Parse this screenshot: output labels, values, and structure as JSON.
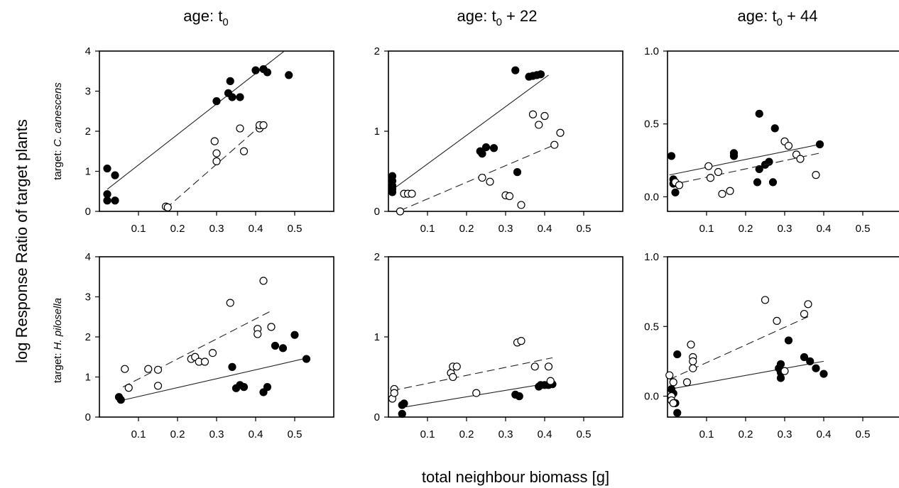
{
  "figure": {
    "ylabel": "log Response Ratio of target plants",
    "xlabel": "total neighbour biomass [g]",
    "columns": [
      {
        "prefix": "age: t",
        "sub": "0",
        "suffix": ""
      },
      {
        "prefix": "age: t",
        "sub": "0",
        "suffix": " + 22"
      },
      {
        "prefix": "age: t",
        "sub": "0",
        "suffix": " + 44"
      }
    ],
    "rows": [
      {
        "prefix": "target: ",
        "species": "C. canescens"
      },
      {
        "prefix": "target: ",
        "species": "H. pilosella"
      }
    ]
  },
  "chart_data": [
    {
      "type": "scatter",
      "row": 0,
      "col": 0,
      "xlim": [
        0,
        0.6
      ],
      "ylim": [
        0,
        4
      ],
      "xticks": [
        "0.1",
        "0.2",
        "0.3",
        "0.4",
        "0.5"
      ],
      "yticks": [
        "0",
        "1",
        "2",
        "3",
        "4"
      ],
      "series": [
        {
          "marker": "filled",
          "line": "solid",
          "points": [
            [
              0.02,
              1.07
            ],
            [
              0.04,
              0.9
            ],
            [
              0.02,
              0.43
            ],
            [
              0.02,
              0.27
            ],
            [
              0.04,
              0.27
            ],
            [
              0.3,
              2.75
            ],
            [
              0.33,
              2.95
            ],
            [
              0.335,
              3.25
            ],
            [
              0.34,
              2.85
            ],
            [
              0.36,
              2.85
            ],
            [
              0.4,
              3.52
            ],
            [
              0.42,
              3.55
            ],
            [
              0.43,
              3.47
            ],
            [
              0.485,
              3.4
            ]
          ],
          "fit": [
            [
              0.02,
              0.55
            ],
            [
              0.48,
              4.05
            ]
          ]
        },
        {
          "marker": "open",
          "line": "dashed",
          "points": [
            [
              0.17,
              0.12
            ],
            [
              0.175,
              0.1
            ],
            [
              0.295,
              1.75
            ],
            [
              0.3,
              1.45
            ],
            [
              0.3,
              1.25
            ],
            [
              0.36,
              2.07
            ],
            [
              0.37,
              1.5
            ],
            [
              0.41,
              2.07
            ],
            [
              0.41,
              2.15
            ],
            [
              0.42,
              2.15
            ]
          ],
          "fit": [
            [
              0.17,
              0.07
            ],
            [
              0.42,
              2.2
            ]
          ]
        }
      ]
    },
    {
      "type": "scatter",
      "row": 0,
      "col": 1,
      "xlim": [
        0,
        0.6
      ],
      "ylim": [
        0,
        2
      ],
      "xticks": [
        "0.1",
        "0.2",
        "0.3",
        "0.4",
        "0.5"
      ],
      "yticks": [
        "0",
        "1",
        "2"
      ],
      "series": [
        {
          "marker": "filled",
          "line": "solid",
          "points": [
            [
              0.01,
              0.44
            ],
            [
              0.01,
              0.38
            ],
            [
              0.01,
              0.32
            ],
            [
              0.01,
              0.28
            ],
            [
              0.01,
              0.24
            ],
            [
              0.235,
              0.75
            ],
            [
              0.24,
              0.72
            ],
            [
              0.25,
              0.8
            ],
            [
              0.27,
              0.79
            ],
            [
              0.325,
              1.76
            ],
            [
              0.33,
              0.49
            ],
            [
              0.36,
              1.68
            ],
            [
              0.37,
              1.69
            ],
            [
              0.38,
              1.7
            ],
            [
              0.39,
              1.71
            ]
          ],
          "fit": [
            [
              0.01,
              0.27
            ],
            [
              0.41,
              1.7
            ]
          ]
        },
        {
          "marker": "open",
          "line": "dashed",
          "points": [
            [
              0.03,
              0.0
            ],
            [
              0.04,
              0.22
            ],
            [
              0.05,
              0.22
            ],
            [
              0.06,
              0.22
            ],
            [
              0.24,
              0.42
            ],
            [
              0.26,
              0.37
            ],
            [
              0.3,
              0.2
            ],
            [
              0.31,
              0.19
            ],
            [
              0.34,
              0.08
            ],
            [
              0.37,
              1.21
            ],
            [
              0.385,
              1.08
            ],
            [
              0.4,
              1.19
            ],
            [
              0.425,
              0.83
            ],
            [
              0.44,
              0.98
            ]
          ],
          "fit": [
            [
              0.03,
              0.01
            ],
            [
              0.43,
              0.84
            ]
          ]
        }
      ]
    },
    {
      "type": "scatter",
      "row": 0,
      "col": 2,
      "xlim": [
        0,
        0.6
      ],
      "ylim": [
        -0.1,
        1.0
      ],
      "xticks": [
        "0.1",
        "0.2",
        "0.3",
        "0.4",
        "0.5"
      ],
      "yticks": [
        "0.0",
        "0.5",
        "1.0"
      ],
      "series": [
        {
          "marker": "filled",
          "line": "solid",
          "points": [
            [
              0.01,
              0.28
            ],
            [
              0.015,
              0.12
            ],
            [
              0.015,
              0.09
            ],
            [
              0.02,
              0.03
            ],
            [
              0.17,
              0.28
            ],
            [
              0.17,
              0.3
            ],
            [
              0.23,
              0.1
            ],
            [
              0.235,
              0.19
            ],
            [
              0.235,
              0.57
            ],
            [
              0.25,
              0.22
            ],
            [
              0.26,
              0.24
            ],
            [
              0.27,
              0.1
            ],
            [
              0.275,
              0.47
            ],
            [
              0.39,
              0.36
            ]
          ],
          "fit": [
            [
              0.005,
              0.15
            ],
            [
              0.39,
              0.36
            ]
          ]
        },
        {
          "marker": "open",
          "line": "dashed",
          "points": [
            [
              0.02,
              0.1
            ],
            [
              0.03,
              0.08
            ],
            [
              0.105,
              0.21
            ],
            [
              0.11,
              0.13
            ],
            [
              0.13,
              0.17
            ],
            [
              0.14,
              0.02
            ],
            [
              0.16,
              0.04
            ],
            [
              0.3,
              0.38
            ],
            [
              0.31,
              0.35
            ],
            [
              0.33,
              0.29
            ],
            [
              0.34,
              0.26
            ],
            [
              0.38,
              0.15
            ]
          ],
          "fit": [
            [
              0.005,
              0.08
            ],
            [
              0.39,
              0.3
            ]
          ]
        }
      ]
    },
    {
      "type": "scatter",
      "row": 1,
      "col": 0,
      "xlim": [
        0,
        0.6
      ],
      "ylim": [
        0,
        4
      ],
      "xticks": [
        "0.1",
        "0.2",
        "0.3",
        "0.4",
        "0.5"
      ],
      "yticks": [
        "0",
        "1",
        "2",
        "3",
        "4"
      ],
      "series": [
        {
          "marker": "filled",
          "line": "solid",
          "points": [
            [
              0.05,
              0.5
            ],
            [
              0.055,
              0.43
            ],
            [
              0.34,
              1.25
            ],
            [
              0.35,
              0.72
            ],
            [
              0.36,
              0.8
            ],
            [
              0.37,
              0.75
            ],
            [
              0.42,
              0.62
            ],
            [
              0.43,
              0.75
            ],
            [
              0.45,
              1.78
            ],
            [
              0.47,
              1.72
            ],
            [
              0.5,
              2.05
            ],
            [
              0.53,
              1.45
            ]
          ],
          "fit": [
            [
              0.05,
              0.4
            ],
            [
              0.53,
              1.47
            ]
          ]
        },
        {
          "marker": "open",
          "line": "dashed",
          "points": [
            [
              0.065,
              1.2
            ],
            [
              0.075,
              0.73
            ],
            [
              0.125,
              1.2
            ],
            [
              0.15,
              1.18
            ],
            [
              0.15,
              0.78
            ],
            [
              0.235,
              1.45
            ],
            [
              0.245,
              1.5
            ],
            [
              0.255,
              1.38
            ],
            [
              0.27,
              1.38
            ],
            [
              0.29,
              1.6
            ],
            [
              0.335,
              2.85
            ],
            [
              0.405,
              2.2
            ],
            [
              0.405,
              2.07
            ],
            [
              0.42,
              3.4
            ],
            [
              0.44,
              2.25
            ]
          ],
          "fit": [
            [
              0.06,
              0.75
            ],
            [
              0.44,
              2.65
            ]
          ]
        }
      ]
    },
    {
      "type": "scatter",
      "row": 1,
      "col": 1,
      "xlim": [
        0,
        0.6
      ],
      "ylim": [
        0,
        2
      ],
      "xticks": [
        "0.1",
        "0.2",
        "0.3",
        "0.4",
        "0.5"
      ],
      "yticks": [
        "0",
        "1",
        "2"
      ],
      "series": [
        {
          "marker": "filled",
          "line": "solid",
          "points": [
            [
              0.035,
              0.15
            ],
            [
              0.035,
              0.04
            ],
            [
              0.04,
              0.17
            ],
            [
              0.325,
              0.28
            ],
            [
              0.335,
              0.26
            ],
            [
              0.385,
              0.38
            ],
            [
              0.39,
              0.4
            ],
            [
              0.4,
              0.4
            ],
            [
              0.41,
              0.4
            ],
            [
              0.42,
              0.41
            ]
          ],
          "fit": [
            [
              0.035,
              0.12
            ],
            [
              0.42,
              0.43
            ]
          ]
        },
        {
          "marker": "open",
          "line": "dashed",
          "points": [
            [
              0.01,
              0.23
            ],
            [
              0.015,
              0.35
            ],
            [
              0.015,
              0.3
            ],
            [
              0.16,
              0.55
            ],
            [
              0.165,
              0.63
            ],
            [
              0.165,
              0.5
            ],
            [
              0.175,
              0.63
            ],
            [
              0.225,
              0.3
            ],
            [
              0.33,
              0.93
            ],
            [
              0.34,
              0.95
            ],
            [
              0.375,
              0.63
            ],
            [
              0.41,
              0.63
            ],
            [
              0.415,
              0.45
            ]
          ],
          "fit": [
            [
              0.01,
              0.33
            ],
            [
              0.42,
              0.74
            ]
          ]
        }
      ]
    },
    {
      "type": "scatter",
      "row": 1,
      "col": 2,
      "xlim": [
        0,
        0.6
      ],
      "ylim": [
        -0.15,
        1.0
      ],
      "xticks": [
        "0.1",
        "0.2",
        "0.3",
        "0.4",
        "0.5"
      ],
      "yticks": [
        "0.0",
        "0.5",
        "1.0"
      ],
      "series": [
        {
          "marker": "filled",
          "line": "solid",
          "points": [
            [
              0.01,
              0.05
            ],
            [
              0.015,
              0.02
            ],
            [
              0.02,
              -0.05
            ],
            [
              0.025,
              0.3
            ],
            [
              0.025,
              -0.12
            ],
            [
              0.285,
              0.2
            ],
            [
              0.29,
              0.23
            ],
            [
              0.29,
              0.17
            ],
            [
              0.29,
              0.13
            ],
            [
              0.31,
              0.4
            ],
            [
              0.35,
              0.28
            ],
            [
              0.365,
              0.25
            ],
            [
              0.38,
              0.2
            ],
            [
              0.4,
              0.16
            ]
          ],
          "fit": [
            [
              0.005,
              0.05
            ],
            [
              0.4,
              0.25
            ]
          ]
        },
        {
          "marker": "open",
          "line": "dashed",
          "points": [
            [
              0.005,
              0.15
            ],
            [
              0.01,
              0.0
            ],
            [
              0.01,
              -0.03
            ],
            [
              0.015,
              0.1
            ],
            [
              0.015,
              -0.05
            ],
            [
              0.05,
              0.1
            ],
            [
              0.06,
              0.37
            ],
            [
              0.065,
              0.2
            ],
            [
              0.065,
              0.28
            ],
            [
              0.065,
              0.25
            ],
            [
              0.25,
              0.69
            ],
            [
              0.28,
              0.54
            ],
            [
              0.3,
              0.18
            ],
            [
              0.35,
              0.59
            ],
            [
              0.36,
              0.66
            ]
          ],
          "fit": [
            [
              0.005,
              0.12
            ],
            [
              0.36,
              0.57
            ]
          ]
        }
      ]
    }
  ]
}
